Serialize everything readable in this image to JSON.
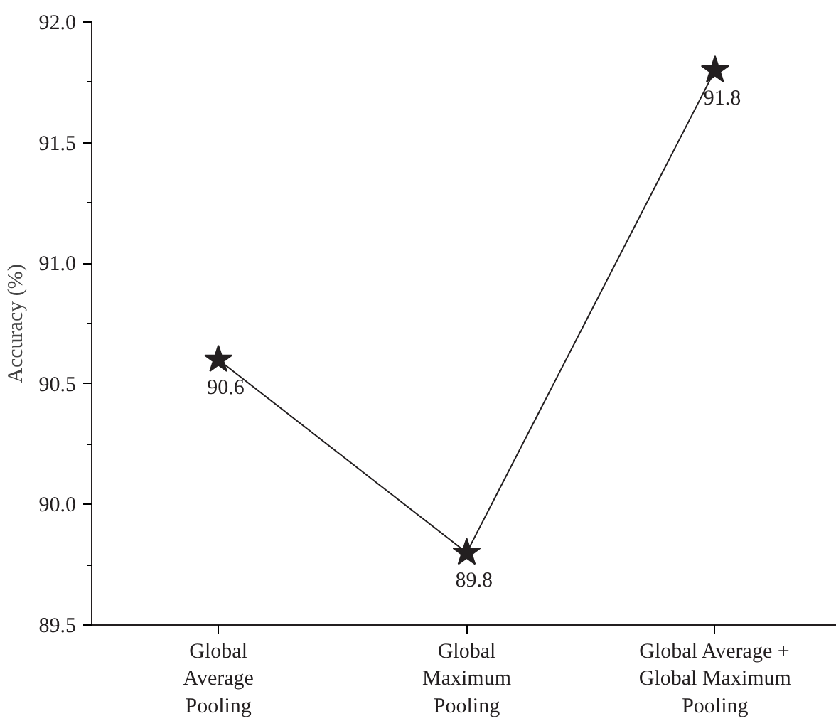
{
  "chart_data": {
    "type": "line",
    "ylabel": "Accuracy (%)",
    "categories": [
      "Global\nAverage\nPooling",
      "Global\nMaximum\nPooling",
      "Global Average +\nGlobal Maximum\nPooling"
    ],
    "series": [
      {
        "color": "#231f20",
        "values": [
          90.6,
          89.8,
          91.8
        ]
      }
    ],
    "ylim": [
      89.5,
      92.0
    ],
    "yticks": [
      "89.5",
      "90.0",
      "90.5",
      "91.0",
      "91.5",
      "92.0"
    ],
    "marker": "star",
    "line_style": "solid",
    "data_labels": true
  }
}
